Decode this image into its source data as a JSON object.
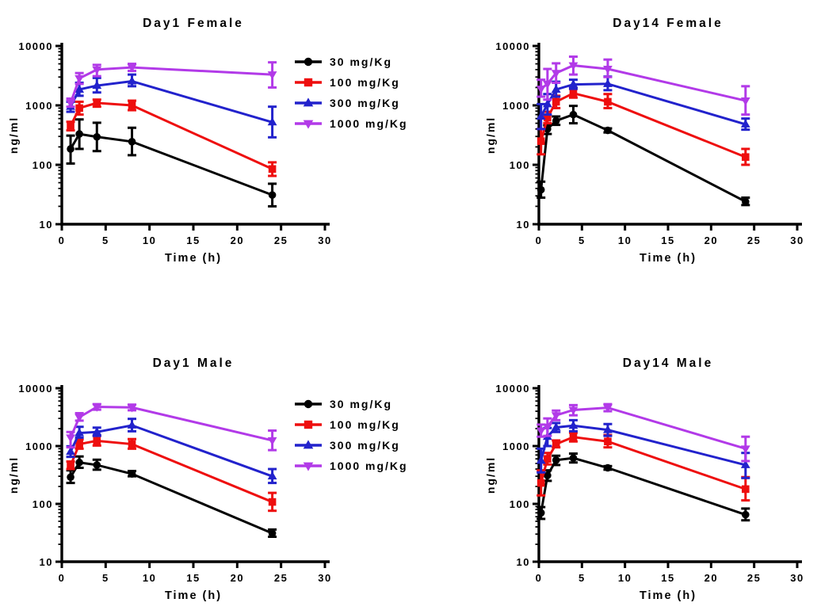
{
  "figure": {
    "background": "#ffffff",
    "description": "Four pharmacokinetic concentration-time plots (log y-scale)"
  },
  "colors": {
    "axis": "#000000",
    "dose30": "#000000",
    "dose100": "#EE0E0E",
    "dose300": "#2222CC",
    "dose1000": "#B23AE8"
  },
  "chart_data": [
    {
      "type": "line",
      "title": "Day1 Female",
      "xlabel": "Time (h)",
      "ylabel": "ng/ml",
      "xlim": [
        0,
        30
      ],
      "ylim_log": [
        10,
        10000
      ],
      "x_ticks": [
        0,
        5,
        10,
        15,
        20,
        25,
        30
      ],
      "y_ticks": [
        10,
        100,
        1000,
        10000
      ],
      "grid": false,
      "legend": true,
      "legend_position": "right-top",
      "x": [
        1,
        2,
        4,
        8,
        24
      ],
      "series": [
        {
          "name": "30 mg/Kg",
          "marker": "circle",
          "color_key": "dose30",
          "values": [
            185,
            330,
            295,
            245,
            31
          ],
          "err_lo": [
            105,
            185,
            170,
            145,
            20
          ],
          "err_hi": [
            310,
            580,
            510,
            420,
            48
          ]
        },
        {
          "name": "100 mg/Kg",
          "marker": "square",
          "color_key": "dose100",
          "values": [
            450,
            900,
            1100,
            1000,
            85
          ],
          "err_lo": [
            380,
            700,
            950,
            830,
            65
          ],
          "err_hi": [
            530,
            1150,
            1250,
            1200,
            110
          ]
        },
        {
          "name": "300 mg/Kg",
          "marker": "triangle-up",
          "color_key": "dose300",
          "values": [
            950,
            1850,
            2150,
            2550,
            520
          ],
          "err_lo": [
            780,
            1450,
            1650,
            2100,
            290
          ],
          "err_hi": [
            1150,
            2400,
            2900,
            3300,
            950
          ]
        },
        {
          "name": "1000 mg/Kg",
          "marker": "triangle-down",
          "color_key": "dose1000",
          "values": [
            1100,
            2850,
            4000,
            4350,
            3300
          ],
          "err_lo": [
            950,
            2300,
            3100,
            3800,
            2000
          ],
          "err_hi": [
            1300,
            3500,
            4800,
            5000,
            5300
          ]
        }
      ]
    },
    {
      "type": "line",
      "title": "Day14 Female",
      "xlabel": "Time (h)",
      "ylabel": "ng/ml",
      "xlim": [
        0,
        30
      ],
      "ylim_log": [
        10,
        10000
      ],
      "x_ticks": [
        0,
        5,
        10,
        15,
        20,
        25,
        30
      ],
      "y_ticks": [
        10,
        100,
        1000,
        10000
      ],
      "grid": false,
      "legend": false,
      "x": [
        0.25,
        1,
        2,
        4,
        8,
        24
      ],
      "series": [
        {
          "name": "30 mg/Kg",
          "marker": "circle",
          "color_key": "dose30",
          "values": [
            38,
            400,
            550,
            700,
            380,
            24
          ],
          "err_lo": [
            28,
            330,
            470,
            500,
            350,
            21
          ],
          "err_hi": [
            52,
            460,
            650,
            980,
            410,
            28
          ]
        },
        {
          "name": "100 mg/Kg",
          "marker": "square",
          "color_key": "dose100",
          "values": [
            250,
            620,
            1150,
            1600,
            1150,
            135
          ],
          "err_lo": [
            150,
            500,
            900,
            1350,
            900,
            100
          ],
          "err_hi": [
            400,
            780,
            1450,
            1900,
            1550,
            185
          ]
        },
        {
          "name": "300 mg/Kg",
          "marker": "triangle-up",
          "color_key": "dose300",
          "values": [
            650,
            1050,
            1850,
            2250,
            2300,
            480
          ],
          "err_lo": [
            400,
            700,
            1400,
            1900,
            1800,
            390
          ],
          "err_hi": [
            1050,
            1550,
            2500,
            2700,
            3050,
            600
          ]
        },
        {
          "name": "1000 mg/Kg",
          "marker": "triangle-down",
          "color_key": "dose1000",
          "values": [
            1900,
            2300,
            3500,
            4700,
            4100,
            1200
          ],
          "err_lo": [
            1400,
            1250,
            2400,
            3300,
            3000,
            700
          ],
          "err_hi": [
            2700,
            4100,
            5100,
            6600,
            5900,
            2100
          ]
        }
      ]
    },
    {
      "type": "line",
      "title": "Day1 Male",
      "xlabel": "Time (h)",
      "ylabel": "ng/ml",
      "xlim": [
        0,
        30
      ],
      "ylim_log": [
        10,
        10000
      ],
      "x_ticks": [
        0,
        5,
        10,
        15,
        20,
        25,
        30
      ],
      "y_ticks": [
        10,
        100,
        1000,
        10000
      ],
      "grid": false,
      "legend": true,
      "legend_position": "right-top",
      "x": [
        1,
        2,
        4,
        8,
        24
      ],
      "series": [
        {
          "name": "30 mg/Kg",
          "marker": "circle",
          "color_key": "dose30",
          "values": [
            290,
            520,
            470,
            330,
            31
          ],
          "err_lo": [
            230,
            420,
            390,
            300,
            27
          ],
          "err_hi": [
            380,
            660,
            580,
            370,
            36
          ]
        },
        {
          "name": "100 mg/Kg",
          "marker": "square",
          "color_key": "dose100",
          "values": [
            460,
            1080,
            1230,
            1080,
            108
          ],
          "err_lo": [
            400,
            900,
            1020,
            900,
            76
          ],
          "err_hi": [
            540,
            1300,
            1500,
            1320,
            155
          ]
        },
        {
          "name": "300 mg/Kg",
          "marker": "triangle-up",
          "color_key": "dose300",
          "values": [
            800,
            1680,
            1750,
            2280,
            300
          ],
          "err_lo": [
            650,
            1400,
            1500,
            1800,
            230
          ],
          "err_hi": [
            990,
            2150,
            2080,
            2950,
            400
          ]
        },
        {
          "name": "1000 mg/Kg",
          "marker": "triangle-down",
          "color_key": "dose1000",
          "values": [
            1400,
            3150,
            4750,
            4650,
            1250
          ],
          "err_lo": [
            950,
            2750,
            4250,
            4150,
            850
          ],
          "err_hi": [
            1750,
            3700,
            5300,
            5200,
            1850
          ]
        }
      ]
    },
    {
      "type": "line",
      "title": "Day14 Male",
      "xlabel": "Time (h)",
      "ylabel": "ng/ml",
      "xlim": [
        0,
        30
      ],
      "ylim_log": [
        10,
        10000
      ],
      "x_ticks": [
        0,
        5,
        10,
        15,
        20,
        25,
        30
      ],
      "y_ticks": [
        10,
        100,
        1000,
        10000
      ],
      "grid": false,
      "legend": false,
      "x": [
        0.25,
        1,
        2,
        4,
        8,
        24
      ],
      "series": [
        {
          "name": "30 mg/Kg",
          "marker": "circle",
          "color_key": "dose30",
          "values": [
            70,
            310,
            570,
            620,
            420,
            65
          ],
          "err_lo": [
            55,
            250,
            470,
            520,
            390,
            52
          ],
          "err_hi": [
            88,
            380,
            680,
            740,
            450,
            83
          ]
        },
        {
          "name": "100 mg/Kg",
          "marker": "square",
          "color_key": "dose100",
          "values": [
            230,
            600,
            1080,
            1430,
            1200,
            180
          ],
          "err_lo": [
            140,
            480,
            950,
            1200,
            950,
            115
          ],
          "err_hi": [
            380,
            760,
            1250,
            1700,
            1550,
            290
          ]
        },
        {
          "name": "300 mg/Kg",
          "marker": "triangle-up",
          "color_key": "dose300",
          "values": [
            560,
            1450,
            2100,
            2250,
            1900,
            470
          ],
          "err_lo": [
            350,
            1000,
            1750,
            1800,
            1500,
            280
          ],
          "err_hi": [
            900,
            2050,
            2500,
            2800,
            2400,
            760
          ]
        },
        {
          "name": "1000 mg/Kg",
          "marker": "triangle-down",
          "color_key": "dose1000",
          "values": [
            1850,
            2150,
            3400,
            4200,
            4600,
            900
          ],
          "err_lo": [
            1450,
            1500,
            2800,
            3400,
            4000,
            550
          ],
          "err_hi": [
            2350,
            3000,
            4100,
            5100,
            5300,
            1450
          ]
        }
      ]
    }
  ]
}
